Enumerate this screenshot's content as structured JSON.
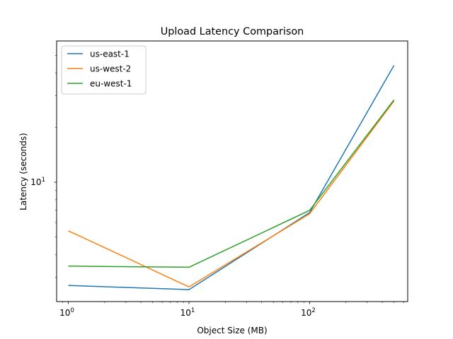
{
  "chart_data": {
    "type": "line",
    "title": "Upload Latency Comparison",
    "xlabel": "Object Size (MB)",
    "ylabel": "Latency (seconds)",
    "x_scale": "log",
    "y_scale": "log",
    "x": [
      1,
      10,
      100,
      500
    ],
    "xlim": [
      0.8,
      650
    ],
    "ylim": [
      2.2,
      60
    ],
    "x_ticks": [
      {
        "v": 1,
        "label": "10",
        "exp": "0"
      },
      {
        "v": 10,
        "label": "10",
        "exp": "1"
      },
      {
        "v": 100,
        "label": "10",
        "exp": "2"
      }
    ],
    "y_ticks": [
      {
        "v": 10,
        "label": "10",
        "exp": "1"
      }
    ],
    "grid": false,
    "legend_position": "top-left",
    "series": [
      {
        "name": "us-east-1",
        "color": "#1f77b4",
        "values": [
          2.7,
          2.56,
          6.8,
          44.0
        ]
      },
      {
        "name": "us-west-2",
        "color": "#ff7f0e",
        "values": [
          5.4,
          2.65,
          6.7,
          28.0
        ]
      },
      {
        "name": "eu-west-1",
        "color": "#2ca02c",
        "values": [
          3.45,
          3.4,
          7.0,
          28.4
        ]
      }
    ]
  }
}
